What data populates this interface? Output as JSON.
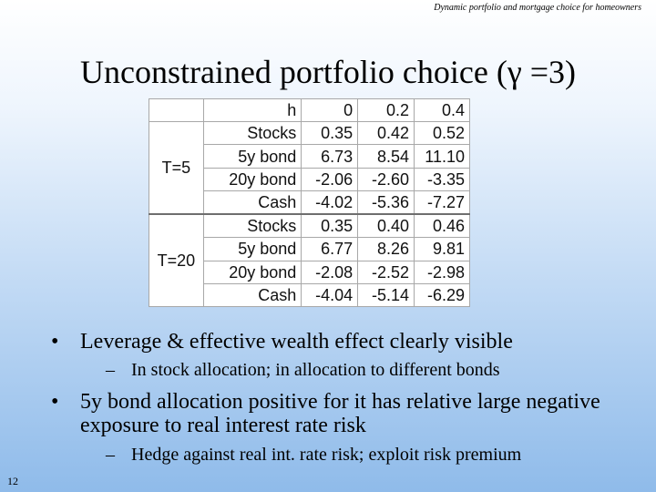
{
  "header_note": "Dynamic portfolio and mortgage choice for homeowners",
  "title": "Unconstrained portfolio choice  (γ =3)",
  "table": {
    "header": [
      "h",
      "0",
      "0.2",
      "0.4"
    ],
    "groups": [
      {
        "label": "T=5",
        "rows": [
          {
            "asset": "Stocks",
            "values": [
              "0.35",
              "0.42",
              "0.52"
            ]
          },
          {
            "asset": "5y bond",
            "values": [
              "6.73",
              "8.54",
              "11.10"
            ]
          },
          {
            "asset": "20y bond",
            "values": [
              "-2.06",
              "-2.60",
              "-3.35"
            ]
          },
          {
            "asset": "Cash",
            "values": [
              "-4.02",
              "-5.36",
              "-7.27"
            ]
          }
        ]
      },
      {
        "label": "T=20",
        "rows": [
          {
            "asset": "Stocks",
            "values": [
              "0.35",
              "0.40",
              "0.46"
            ]
          },
          {
            "asset": "5y bond",
            "values": [
              "6.77",
              "8.26",
              "9.81"
            ]
          },
          {
            "asset": "20y bond",
            "values": [
              "-2.08",
              "-2.52",
              "-2.98"
            ]
          },
          {
            "asset": "Cash",
            "values": [
              "-4.04",
              "-5.14",
              "-6.29"
            ]
          }
        ]
      }
    ]
  },
  "bullets": [
    {
      "text": "Leverage & effective wealth effect clearly visible",
      "sub": "In stock allocation; in allocation to different bonds"
    },
    {
      "text": "5y bond allocation positive for it has relative large negative exposure to real interest rate risk",
      "sub": "Hedge against real int. rate risk; exploit risk premium"
    }
  ],
  "page_number": "12"
}
